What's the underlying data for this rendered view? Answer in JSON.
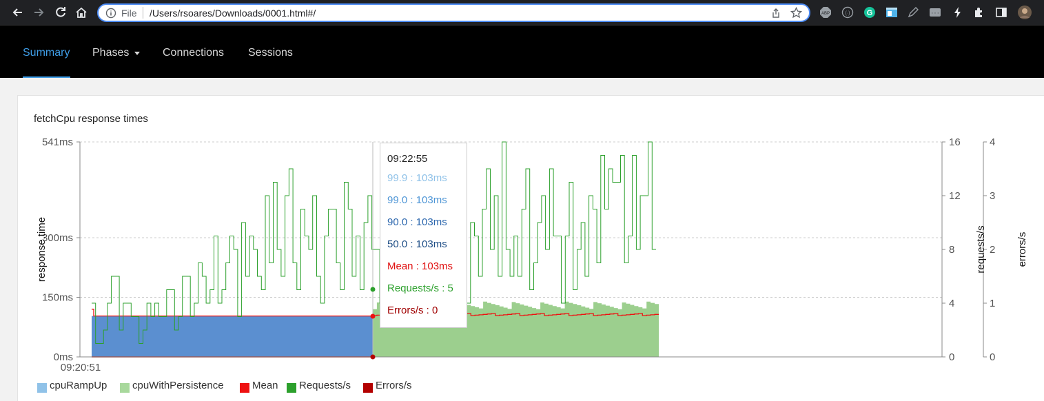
{
  "browser": {
    "scheme_label": "File",
    "url": "/Users/rsoares/Downloads/0001.html#/"
  },
  "nav": {
    "summary": "Summary",
    "phases": "Phases",
    "connections": "Connections",
    "sessions": "Sessions"
  },
  "card": {
    "title": "fetchCpu response times"
  },
  "tooltip": {
    "time": "09:22:55",
    "p999": "99.9 : 103ms",
    "p990": "99.0 : 103ms",
    "p900": "90.0 : 103ms",
    "p500": "50.0 : 103ms",
    "mean": "Mean : 103ms",
    "requests": "Requests/s : 5",
    "errors": "Errors/s : 0"
  },
  "legend": {
    "items": [
      {
        "label": "cpuRampUp",
        "color": "#90c2e8"
      },
      {
        "label": "cpuWithPersistence",
        "color": "#a8d89c"
      },
      {
        "label": "Mean",
        "color": "#ee1111"
      },
      {
        "label": "Requests/s",
        "color": "#2ca02c"
      },
      {
        "label": "Errors/s",
        "color": "#b30000"
      }
    ]
  },
  "colors": {
    "ramp_fill": "#5b8fd0",
    "persist_fill": "#9ccf8e",
    "mean": "#ee1111",
    "requests": "#2ca02c",
    "errors": "#b30000",
    "accent": "#3f9ee8"
  },
  "chart_data": {
    "type": "area",
    "x_start_label": "09:20:51",
    "ylabel": "response.time",
    "y_ticks": [
      "0ms",
      "150ms",
      "300ms",
      "541ms"
    ],
    "y_tick_values": [
      0,
      150,
      300,
      541
    ],
    "y_lim": [
      0,
      541
    ],
    "y2label": "requests/s",
    "y2_ticks": [
      "0",
      "4",
      "8",
      "12",
      "16"
    ],
    "y2_lim": [
      0,
      16
    ],
    "y3label": "errors/s",
    "y3_ticks": [
      "0",
      "1",
      "2",
      "3",
      "4"
    ],
    "y3_lim": [
      0,
      4
    ],
    "grid": true,
    "series": [
      {
        "name": "cpuRampUp",
        "type": "area",
        "approx_value_ms": 103
      },
      {
        "name": "cpuWithPersistence",
        "type": "area",
        "approx_value_ms": 130
      },
      {
        "name": "Mean",
        "type": "line",
        "approx_value_ms": 103
      },
      {
        "name": "Requests/s",
        "type": "line",
        "values": [
          4,
          1,
          1,
          2,
          4,
          6,
          6,
          2,
          4,
          4,
          3,
          3,
          1,
          2,
          4,
          3,
          4,
          3,
          3,
          5,
          5,
          2,
          3,
          6,
          6,
          3,
          4,
          7,
          6,
          4,
          5,
          9,
          4,
          5,
          7,
          9,
          8,
          3,
          10,
          6,
          9,
          8,
          6,
          5,
          12,
          7,
          13,
          8,
          6,
          12,
          14,
          7,
          5,
          11,
          9,
          8,
          12,
          6,
          4,
          9,
          11,
          11,
          7,
          5,
          13,
          11,
          6,
          9,
          5,
          10,
          12,
          8,
          8,
          4,
          14,
          9,
          7,
          10,
          6,
          5,
          4,
          4,
          5,
          7,
          10,
          8,
          11,
          7,
          12,
          5,
          9,
          12,
          6,
          13,
          8,
          4,
          10,
          9,
          6,
          11,
          14,
          8,
          12,
          6,
          16,
          8,
          6,
          9,
          6,
          11,
          14,
          5,
          7,
          10,
          12,
          8,
          14,
          9,
          9,
          4,
          9,
          13,
          5,
          8,
          10,
          6,
          12,
          11,
          7,
          15,
          11,
          14,
          13,
          13,
          15,
          7,
          9,
          15,
          8,
          12,
          12,
          16,
          8
        ]
      },
      {
        "name": "Errors/s",
        "type": "line",
        "values": [
          0
        ]
      }
    ]
  }
}
